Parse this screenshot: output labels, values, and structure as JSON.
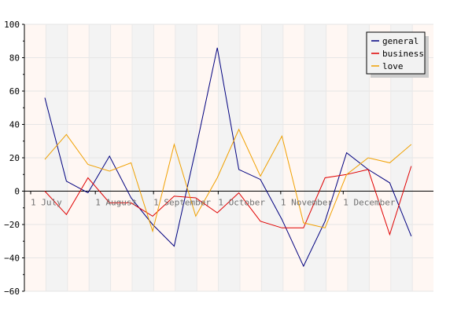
{
  "chart_data": {
    "type": "line",
    "y_axis": {
      "min": -60,
      "max": 100,
      "ticks": [
        -60,
        -40,
        -20,
        0,
        20,
        40,
        60,
        80,
        100
      ],
      "tick_labels": [
        "−60",
        "−40",
        "−20",
        "0",
        "20",
        "40",
        "60",
        "80",
        "100"
      ]
    },
    "x_index_range": [
      0,
      18
    ],
    "month_labels": [
      {
        "label": "1 July",
        "index": 0
      },
      {
        "label": "1 August",
        "index": 3
      },
      {
        "label": "1 September",
        "index": 5.7
      },
      {
        "label": "1 October",
        "index": 8.7
      },
      {
        "label": "1 November",
        "index": 11.6
      },
      {
        "label": "1 December",
        "index": 14.5
      }
    ],
    "band_colors": [
      "#fff7f3",
      "#f3f3f3"
    ],
    "grid": true,
    "legend_position": "top-right",
    "series": [
      {
        "name": "general",
        "color": "#00007f",
        "values": [
          56,
          6,
          -1,
          21,
          -4,
          -20,
          -33,
          25,
          86,
          13,
          7,
          -17,
          -45,
          -18,
          23,
          13,
          5,
          -27
        ]
      },
      {
        "name": "business",
        "color": "#e00000",
        "values": [
          0,
          -14,
          8,
          -7,
          -7,
          -15,
          -3,
          -4,
          -13,
          -1,
          -18,
          -22,
          -22,
          8,
          10,
          13,
          -26,
          15
        ]
      },
      {
        "name": "love",
        "color": "#f0a000",
        "values": [
          19,
          34,
          16,
          12,
          17,
          -24,
          28,
          -15,
          8,
          37,
          9,
          33,
          -19,
          -22,
          10,
          20,
          17,
          28
        ]
      }
    ]
  }
}
